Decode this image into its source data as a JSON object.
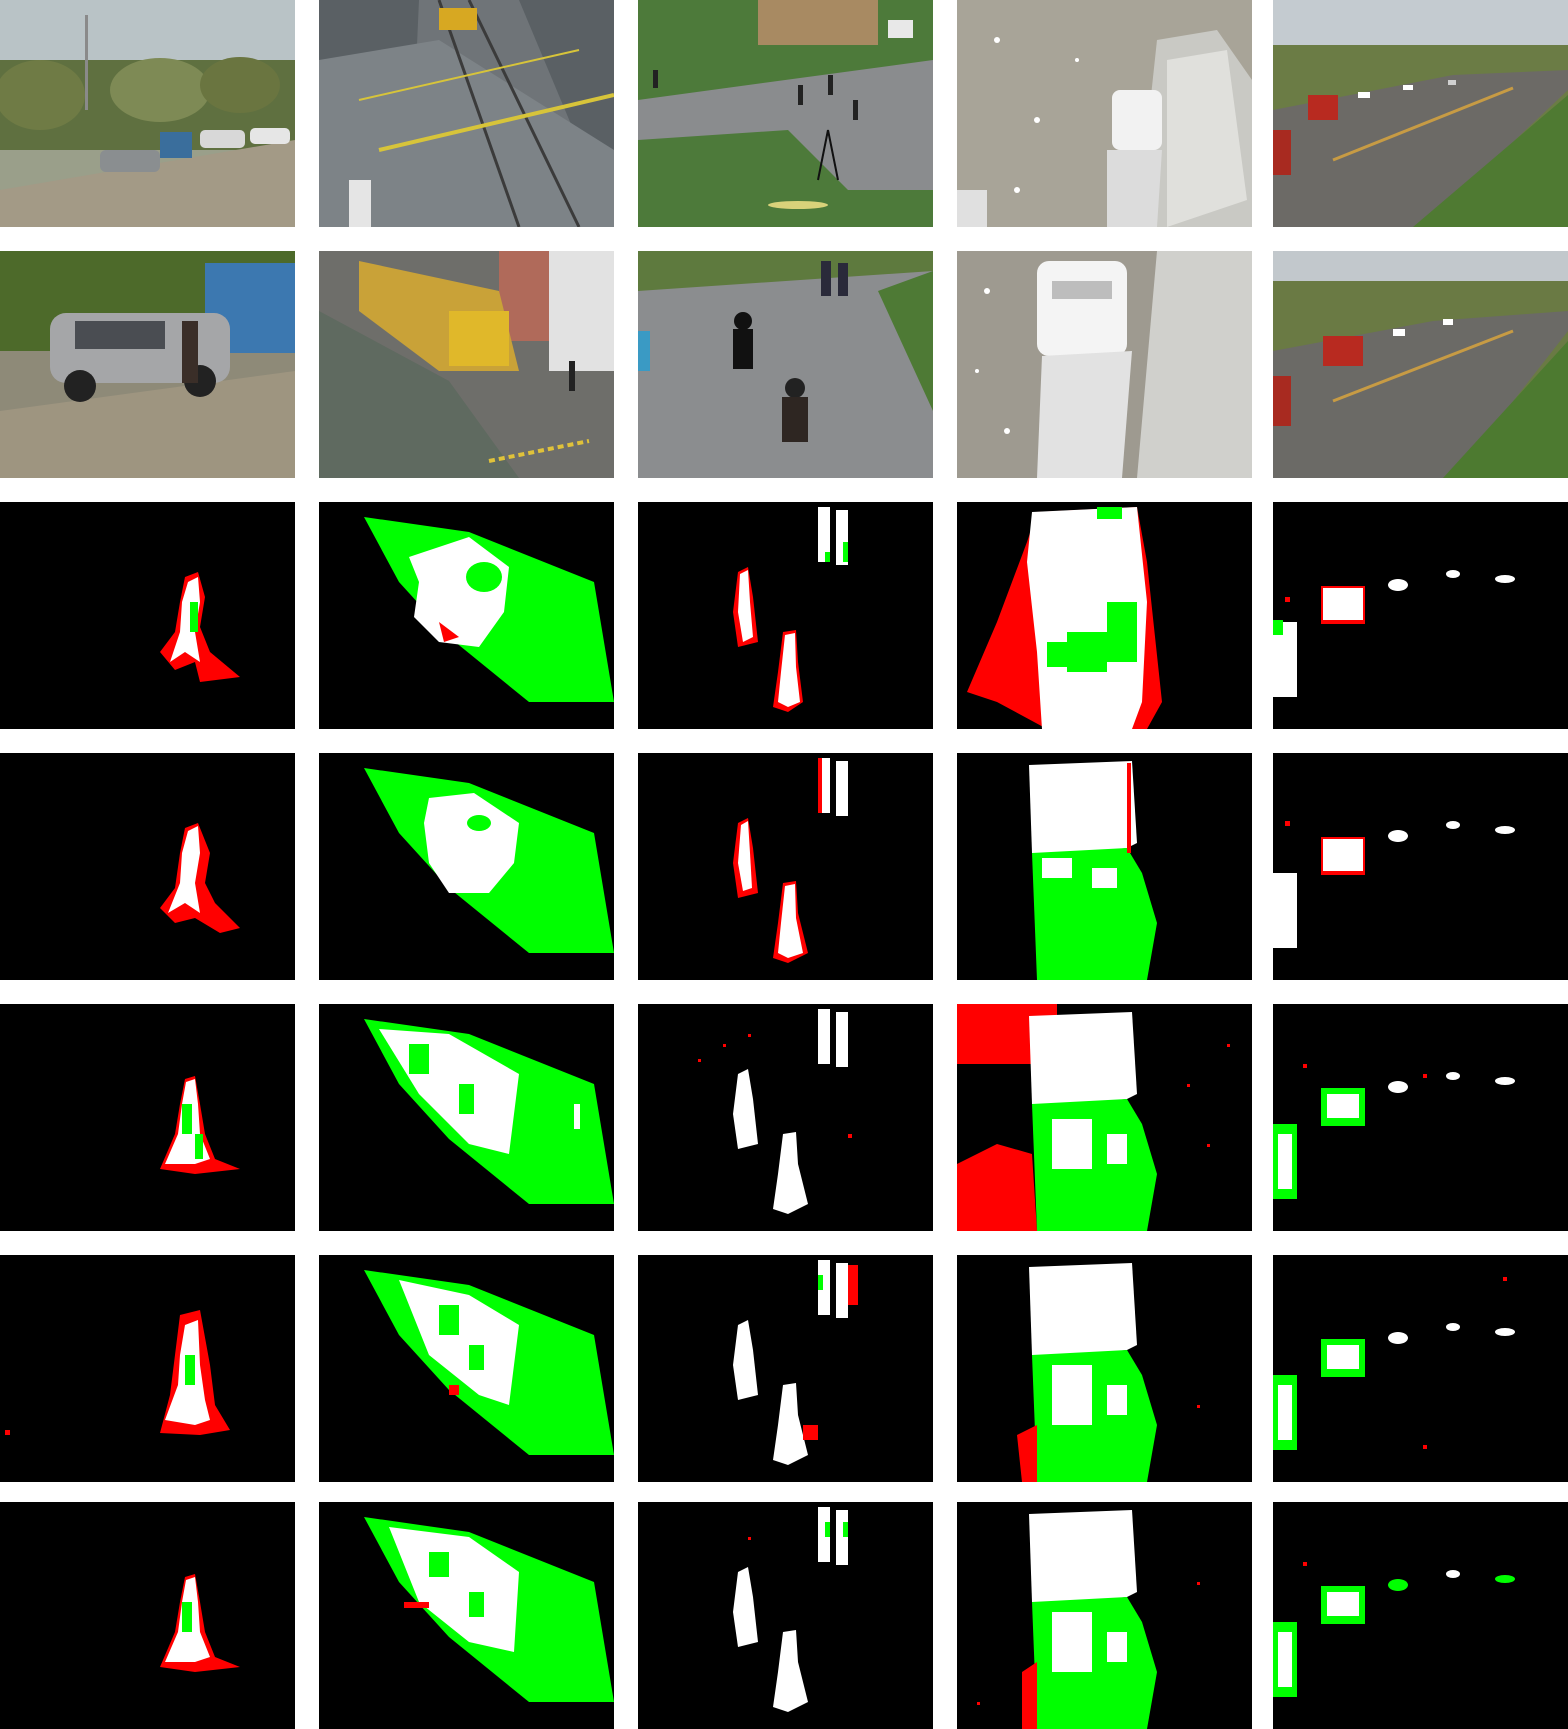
{
  "figure": {
    "columns": [
      "parking-lot",
      "railway-crossing",
      "campus-pedestrians",
      "overhead-truck",
      "highway"
    ],
    "row_kinds": [
      "input-frame",
      "input-frame",
      "segmentation-mask",
      "segmentation-mask",
      "segmentation-mask",
      "segmentation-mask",
      "segmentation-mask"
    ],
    "mask_legend_colors": {
      "correct": "#ffffff",
      "missed": "#00ff00",
      "false_positive": "#ff0000",
      "background": "#000000"
    }
  }
}
